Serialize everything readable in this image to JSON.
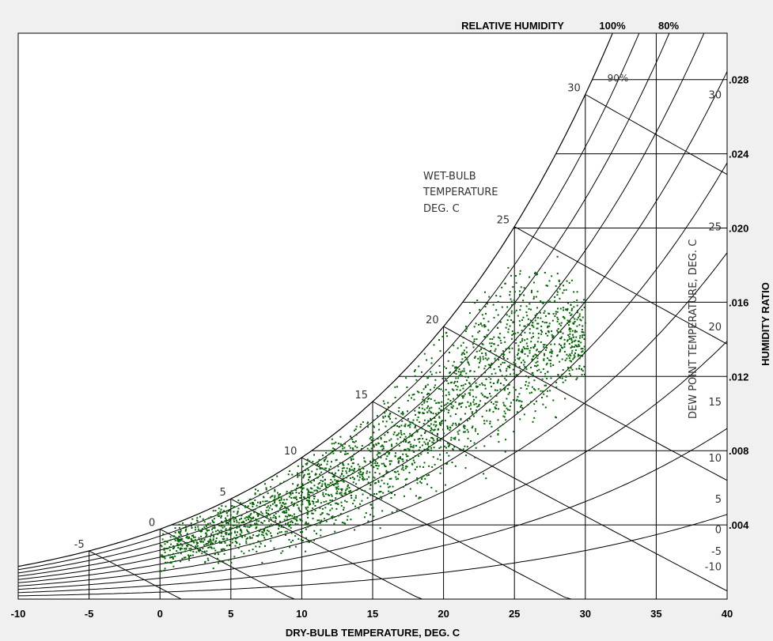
{
  "chart_data": {
    "type": "scatter",
    "title": "",
    "xlabel": "DRY-BULB TEMPERATURE, DEG. C",
    "ylabel": "HUMIDITY RATIO",
    "xlim": [
      -10,
      40
    ],
    "ylim": [
      0,
      0.0305
    ],
    "x_ticks": [
      "-10",
      "-5",
      "0",
      "5",
      "10",
      "15",
      "20",
      "25",
      "30",
      "35",
      "40"
    ],
    "y_ticks": [
      ".004",
      ".008",
      ".012",
      ".016",
      ".020",
      ".024",
      ".028"
    ],
    "rh_header": "RELATIVE HUMIDITY",
    "rh_labels": [
      "100%",
      "80%",
      "90%"
    ],
    "wet_bulb_title": [
      "WET-BULB",
      "TEMPERATURE",
      "DEG. C"
    ],
    "wet_bulb_labels": [
      "-5",
      "0",
      "5",
      "10",
      "15",
      "20",
      "25",
      "30"
    ],
    "dew_point_title": "DEW POINT TEMPERATURE, DEG. C",
    "dew_point_labels": [
      "30",
      "25",
      "20",
      "15",
      "10",
      "5",
      "0",
      "-5",
      "-10"
    ],
    "series": [
      {
        "color": "#006400",
        "density_profile": [
          {
            "x": 0,
            "y_min": 0.001,
            "y_max": 0.0037
          },
          {
            "x": 5,
            "y_min": 0.0015,
            "y_max": 0.0054
          },
          {
            "x": 10,
            "y_min": 0.002,
            "y_max": 0.0075
          },
          {
            "x": 15,
            "y_min": 0.003,
            "y_max": 0.0105
          },
          {
            "x": 20,
            "y_min": 0.005,
            "y_max": 0.0142
          },
          {
            "x": 25,
            "y_min": 0.007,
            "y_max": 0.0182
          },
          {
            "x": 28,
            "y_min": 0.009,
            "y_max": 0.0185
          },
          {
            "x": 30,
            "y_min": 0.011,
            "y_max": 0.016
          }
        ]
      }
    ]
  }
}
